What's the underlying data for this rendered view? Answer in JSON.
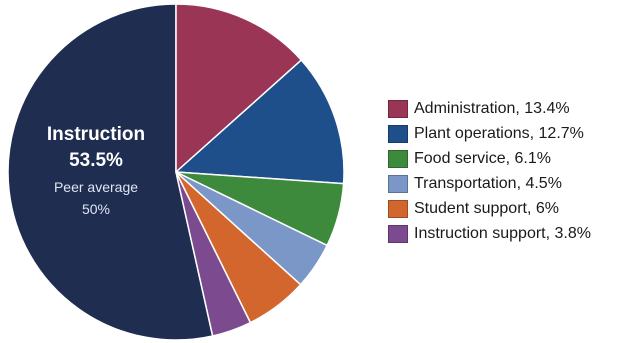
{
  "chart_data": {
    "type": "pie",
    "title": "",
    "main_slice": {
      "name": "Instruction",
      "value": 53.5,
      "value_label": "53.5%",
      "peer_label": "Peer average",
      "peer_value_label": "50%",
      "color": "#1e2d50"
    },
    "slices": [
      {
        "name": "Instruction",
        "value": 53.5,
        "color": "#1e2d50"
      },
      {
        "name": "Administration",
        "value": 13.4,
        "label": "Administration, 13.4%",
        "color": "#9b3556"
      },
      {
        "name": "Plant operations",
        "value": 12.7,
        "label": "Plant operations, 12.7%",
        "color": "#1f4f8b"
      },
      {
        "name": "Food service",
        "value": 6.1,
        "label": "Food service, 6.1%",
        "color": "#3d8a3c"
      },
      {
        "name": "Transportation",
        "value": 4.5,
        "label": "Transportation, 4.5%",
        "color": "#7b97c7"
      },
      {
        "name": "Student support",
        "value": 6,
        "label": "Student support, 6%",
        "color": "#d3662c"
      },
      {
        "name": "Instruction support",
        "value": 3.8,
        "label": "Instruction support, 3.8%",
        "color": "#7c4a8e"
      }
    ],
    "legend_position": "right",
    "legend_items": [
      {
        "label": "Administration, 13.4%",
        "color": "#9b3556"
      },
      {
        "label": "Plant operations, 12.7%",
        "color": "#1f4f8b"
      },
      {
        "label": "Food service, 6.1%",
        "color": "#3d8a3c"
      },
      {
        "label": "Transportation, 4.5%",
        "color": "#7b97c7"
      },
      {
        "label": "Student support, 6%",
        "color": "#d3662c"
      },
      {
        "label": "Instruction support, 3.8%",
        "color": "#7c4a8e"
      }
    ]
  }
}
